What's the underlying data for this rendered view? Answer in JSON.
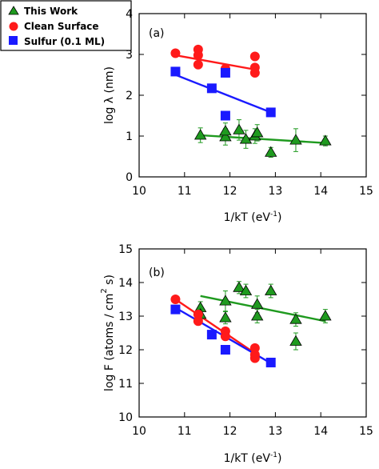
{
  "colors": {
    "this_work": "#1f9a1f",
    "clean_surface": "#ff1a1a",
    "sulfur": "#1a1aff",
    "axis": "#000000"
  },
  "legend": {
    "placement": "top-left",
    "entries": [
      {
        "label": "This Work",
        "marker": "triangle",
        "color": "#1f9a1f"
      },
      {
        "label": "Clean Surface",
        "marker": "circle",
        "color": "#ff1a1a"
      },
      {
        "label": "Sulfur (0.1 ML)",
        "marker": "square",
        "color": "#1a1aff"
      }
    ]
  },
  "chart_data": [
    {
      "type": "scatter",
      "panel_label": "(a)",
      "xlabel_base": "1/kT (eV",
      "xlabel_sup": "-1",
      "xlabel_tail": ")",
      "ylabel": "log λ (nm)",
      "xlim": [
        10,
        15
      ],
      "ylim": [
        0,
        4
      ],
      "xticks": [
        10,
        11,
        12,
        13,
        14,
        15
      ],
      "yticks": [
        0,
        1,
        2,
        3,
        4
      ],
      "grid": false,
      "series": [
        {
          "name": "This Work",
          "marker": "triangle",
          "color": "#1f9a1f",
          "points": [
            {
              "x": 11.35,
              "y": 1.02,
              "err": 0.18
            },
            {
              "x": 11.9,
              "y": 0.98,
              "err": 0.2
            },
            {
              "x": 11.9,
              "y": 1.12,
              "err": 0.2
            },
            {
              "x": 12.2,
              "y": 1.15,
              "err": 0.25
            },
            {
              "x": 12.35,
              "y": 0.92,
              "err": 0.22
            },
            {
              "x": 12.55,
              "y": 1.0,
              "err": 0.18
            },
            {
              "x": 12.6,
              "y": 1.08,
              "err": 0.2
            },
            {
              "x": 12.9,
              "y": 0.6,
              "err": 0.12
            },
            {
              "x": 13.45,
              "y": 0.9,
              "err": 0.28
            },
            {
              "x": 14.1,
              "y": 0.88,
              "err": 0.12
            }
          ],
          "fit": [
            [
              11.35,
              1.02
            ],
            [
              14.1,
              0.83
            ]
          ]
        },
        {
          "name": "Clean Surface",
          "marker": "circle",
          "color": "#ff1a1a",
          "points": [
            {
              "x": 10.8,
              "y": 3.03
            },
            {
              "x": 11.3,
              "y": 3.12
            },
            {
              "x": 11.3,
              "y": 2.98
            },
            {
              "x": 11.3,
              "y": 2.75
            },
            {
              "x": 11.9,
              "y": 2.65
            },
            {
              "x": 12.55,
              "y": 2.95
            },
            {
              "x": 12.55,
              "y": 2.68
            },
            {
              "x": 12.55,
              "y": 2.55
            }
          ],
          "fit": [
            [
              10.8,
              2.98
            ],
            [
              12.6,
              2.62
            ]
          ]
        },
        {
          "name": "Sulfur (0.1 ML)",
          "marker": "square",
          "color": "#1a1aff",
          "points": [
            {
              "x": 10.8,
              "y": 2.58
            },
            {
              "x": 11.6,
              "y": 2.17
            },
            {
              "x": 11.9,
              "y": 2.55
            },
            {
              "x": 11.9,
              "y": 1.5
            },
            {
              "x": 12.9,
              "y": 1.58
            }
          ],
          "fit": [
            [
              10.8,
              2.5
            ],
            [
              12.9,
              1.58
            ]
          ]
        }
      ]
    },
    {
      "type": "scatter",
      "panel_label": "(b)",
      "xlabel_base": "1/kT (eV",
      "xlabel_sup": "-1",
      "xlabel_tail": ")",
      "ylabel_base": "log F (atoms / cm",
      "ylabel_sup": "2",
      "ylabel_tail": " s)",
      "xlim": [
        10,
        15
      ],
      "ylim": [
        10,
        15
      ],
      "xticks": [
        10,
        11,
        12,
        13,
        14,
        15
      ],
      "yticks": [
        10,
        11,
        12,
        13,
        14,
        15
      ],
      "grid": false,
      "series": [
        {
          "name": "This Work",
          "marker": "triangle",
          "color": "#1f9a1f",
          "points": [
            {
              "x": 11.35,
              "y": 13.25,
              "err": 0.18
            },
            {
              "x": 11.35,
              "y": 13.05,
              "err": 0.15
            },
            {
              "x": 11.9,
              "y": 13.45,
              "err": 0.3
            },
            {
              "x": 11.9,
              "y": 12.95,
              "err": 0.18
            },
            {
              "x": 12.2,
              "y": 13.85,
              "err": 0.18
            },
            {
              "x": 12.35,
              "y": 13.75,
              "err": 0.2
            },
            {
              "x": 12.6,
              "y": 13.35,
              "err": 0.25
            },
            {
              "x": 12.6,
              "y": 13.0,
              "err": 0.2
            },
            {
              "x": 12.9,
              "y": 13.75,
              "err": 0.2
            },
            {
              "x": 13.45,
              "y": 12.9,
              "err": 0.2
            },
            {
              "x": 13.45,
              "y": 12.25,
              "err": 0.25
            },
            {
              "x": 14.1,
              "y": 13.0,
              "err": 0.2
            }
          ],
          "fit": [
            [
              11.35,
              13.6
            ],
            [
              14.1,
              12.85
            ]
          ]
        },
        {
          "name": "Clean Surface",
          "marker": "circle",
          "color": "#ff1a1a",
          "points": [
            {
              "x": 10.8,
              "y": 13.5
            },
            {
              "x": 11.3,
              "y": 13.05
            },
            {
              "x": 11.3,
              "y": 12.85
            },
            {
              "x": 11.9,
              "y": 12.55
            },
            {
              "x": 11.9,
              "y": 12.4
            },
            {
              "x": 12.55,
              "y": 12.05
            },
            {
              "x": 12.55,
              "y": 11.85
            },
            {
              "x": 12.55,
              "y": 11.75
            }
          ],
          "fit": [
            [
              10.8,
              13.5
            ],
            [
              12.6,
              11.85
            ]
          ]
        },
        {
          "name": "Sulfur (0.1 ML)",
          "marker": "square",
          "color": "#1a1aff",
          "points": [
            {
              "x": 10.8,
              "y": 13.2
            },
            {
              "x": 11.6,
              "y": 12.45
            },
            {
              "x": 11.9,
              "y": 12.0
            },
            {
              "x": 12.9,
              "y": 11.62
            }
          ],
          "fit": [
            [
              10.8,
              13.25
            ],
            [
              12.9,
              11.6
            ]
          ]
        }
      ]
    }
  ]
}
